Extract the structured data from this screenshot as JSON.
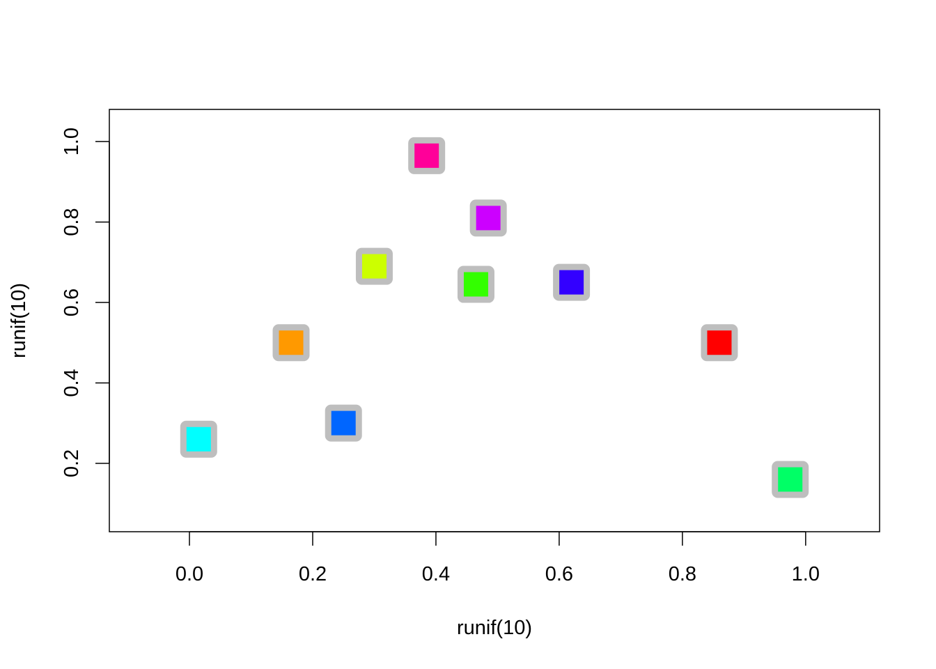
{
  "chart_data": {
    "type": "scatter",
    "title": "",
    "xlabel": "runif(10)",
    "ylabel": "runif(10)",
    "xlim": [
      -0.13,
      1.12
    ],
    "ylim": [
      0.03,
      1.08
    ],
    "x_ticks": [
      0.0,
      0.2,
      0.4,
      0.6,
      0.8,
      1.0
    ],
    "x_tick_labels": [
      "0.0",
      "0.2",
      "0.4",
      "0.6",
      "0.8",
      "1.0"
    ],
    "y_ticks": [
      0.2,
      0.4,
      0.6,
      0.8,
      1.0
    ],
    "y_tick_labels": [
      "0.2",
      "0.4",
      "0.6",
      "0.8",
      "1.0"
    ],
    "grid": false,
    "legend": "none",
    "marker": "square",
    "marker_border_color": "#BEBEBE",
    "points": [
      {
        "x": 0.86,
        "y": 0.5,
        "color": "#FF0000"
      },
      {
        "x": 0.165,
        "y": 0.5,
        "color": "#FF9900"
      },
      {
        "x": 0.3,
        "y": 0.69,
        "color": "#CCFF00"
      },
      {
        "x": 0.465,
        "y": 0.645,
        "color": "#33FF00"
      },
      {
        "x": 0.975,
        "y": 0.16,
        "color": "#00FF66"
      },
      {
        "x": 0.015,
        "y": 0.26,
        "color": "#00FFFF"
      },
      {
        "x": 0.25,
        "y": 0.3,
        "color": "#0066FF"
      },
      {
        "x": 0.62,
        "y": 0.65,
        "color": "#3300FF"
      },
      {
        "x": 0.485,
        "y": 0.81,
        "color": "#CC00FF"
      },
      {
        "x": 0.385,
        "y": 0.965,
        "color": "#FF0099"
      }
    ]
  }
}
